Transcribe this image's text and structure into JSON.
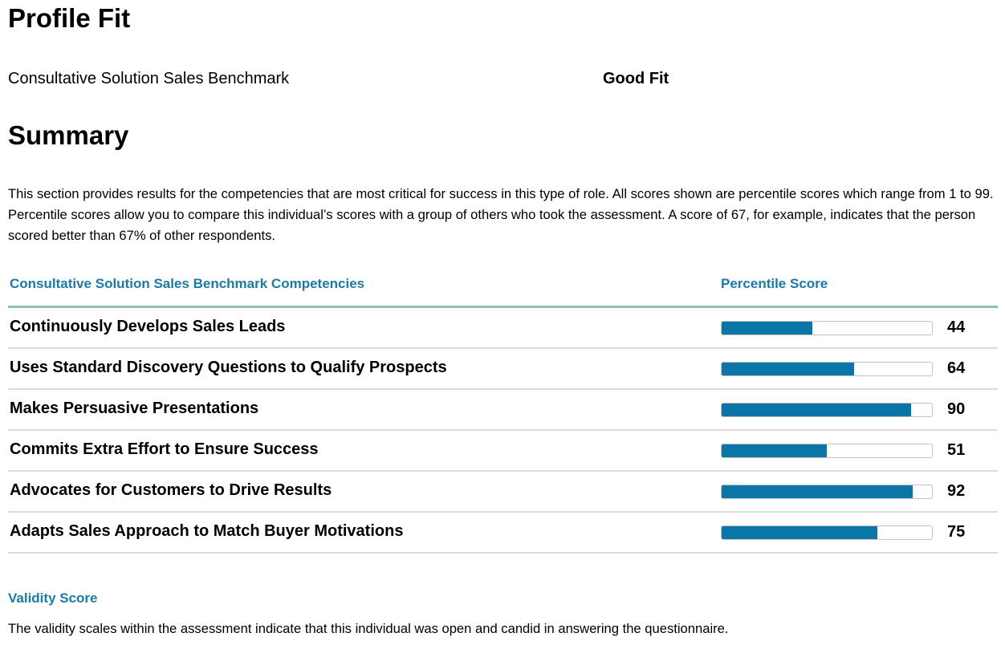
{
  "profile_fit": {
    "title": "Profile Fit",
    "benchmark": "Consultative Solution Sales Benchmark",
    "result": "Good Fit"
  },
  "summary": {
    "title": "Summary",
    "intro": "This section provides results for the competencies that are most critical for success in this type of role. All scores shown are percentile scores which range from 1 to 99. Percentile scores allow you to compare this individual’s scores with a group of others who took the assessment. A score of 67, for example, indicates that the person scored better than 67% of other respondents."
  },
  "competencies": {
    "header_competency": "Consultative Solution Sales Benchmark Competencies",
    "header_score": "Percentile Score",
    "bar_color": "#0a76a8",
    "rows": [
      {
        "label": "Continuously Develops Sales Leads",
        "score": 44,
        "fill_pct": 43
      },
      {
        "label": "Uses Standard Discovery Questions to Qualify Prospects",
        "score": 64,
        "fill_pct": 63
      },
      {
        "label": "Makes Persuasive Presentations",
        "score": 90,
        "fill_pct": 90
      },
      {
        "label": "Commits Extra Effort to Ensure Success",
        "score": 51,
        "fill_pct": 50
      },
      {
        "label": "Advocates for Customers to Drive Results",
        "score": 92,
        "fill_pct": 91
      },
      {
        "label": "Adapts Sales Approach to Match Buyer Motivations",
        "score": 75,
        "fill_pct": 74
      }
    ]
  },
  "validity": {
    "title": "Validity Score",
    "text": "The validity scales within the assessment indicate that this individual was open and candid in answering the questionnaire."
  }
}
